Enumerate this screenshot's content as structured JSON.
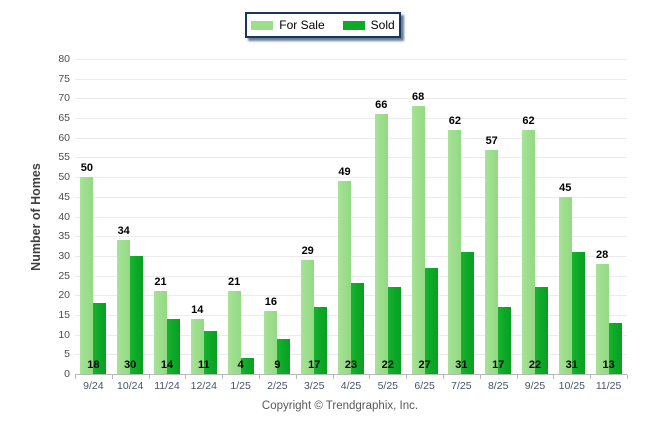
{
  "legend": {
    "items": [
      {
        "label": "For Sale"
      },
      {
        "label": "Sold"
      }
    ]
  },
  "y_axis": {
    "title": "Number of Homes"
  },
  "footer": {
    "copyright": "Copyright © Trendgraphix, Inc."
  },
  "colors": {
    "for_sale": "#9cde8c",
    "sold": "#0da927",
    "legend_border": "#17375e",
    "gridline": "#ececec",
    "axis_text": "#44546a"
  },
  "chart_data": {
    "type": "bar",
    "title": "",
    "xlabel": "",
    "ylabel": "Number of Homes",
    "ylim": [
      0,
      80
    ],
    "ytick_step": 5,
    "grid": true,
    "legend_position": "top-center",
    "categories": [
      "9/24",
      "10/24",
      "11/24",
      "12/24",
      "1/25",
      "2/25",
      "3/25",
      "4/25",
      "5/25",
      "6/25",
      "7/25",
      "8/25",
      "9/25",
      "10/25",
      "11/25"
    ],
    "series": [
      {
        "name": "For Sale",
        "color": "#9cde8c",
        "value_label_position": "above-bar",
        "values": [
          50,
          34,
          21,
          14,
          21,
          16,
          29,
          49,
          66,
          68,
          62,
          57,
          62,
          45,
          28
        ]
      },
      {
        "name": "Sold",
        "color": "#0da927",
        "value_label_position": "base",
        "values": [
          18,
          30,
          14,
          11,
          4,
          9,
          17,
          23,
          22,
          27,
          31,
          17,
          22,
          31,
          13
        ]
      }
    ]
  }
}
